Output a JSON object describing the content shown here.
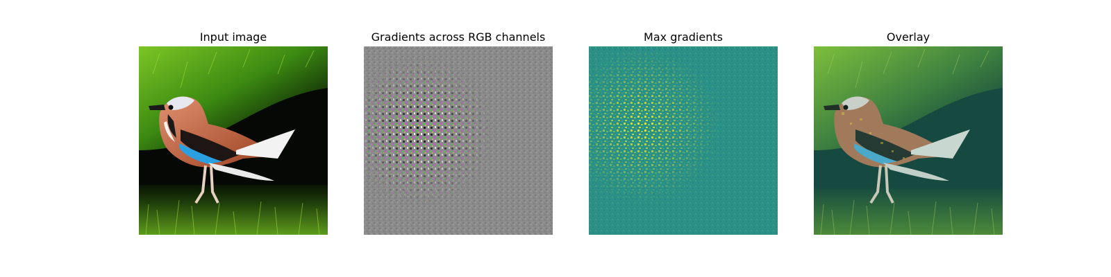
{
  "figure": {
    "panels": [
      {
        "title": "Input image"
      },
      {
        "title": "Gradients across RGB channels"
      },
      {
        "title": "Max gradients"
      },
      {
        "title": "Overlay"
      }
    ]
  },
  "colors": {
    "grass_dark": "#0b1a05",
    "grass_bright": "#8fd22a",
    "bird_breast": "#c0603a",
    "bird_wing_blue": "#2aa0e0",
    "gradient_gray": "#8a8a8a",
    "viridis_teal": "#2a9088",
    "viridis_yellow": "#f2e52a",
    "overlay_base": "#164a40"
  }
}
